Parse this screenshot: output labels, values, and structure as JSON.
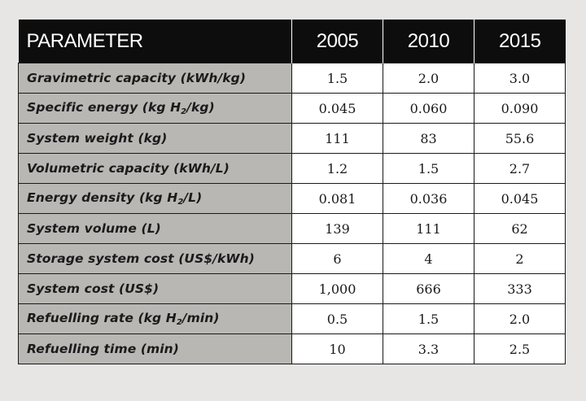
{
  "table": {
    "headers": [
      "PARAMETER",
      "2005",
      "2010",
      "2015"
    ],
    "rows": [
      {
        "parameter": "Gravimetric capacity (kWh/kg)",
        "values": [
          "1.5",
          "2.0",
          "3.0"
        ]
      },
      {
        "parameter_parts": [
          "Specific energy (kg H",
          "2",
          "/kg)"
        ],
        "values": [
          "0.045",
          "0.060",
          "0.090"
        ]
      },
      {
        "parameter": "System weight (kg)",
        "values": [
          "111",
          "83",
          "55.6"
        ]
      },
      {
        "parameter": "Volumetric capacity (kWh/L)",
        "values": [
          "1.2",
          "1.5",
          "2.7"
        ]
      },
      {
        "parameter_parts": [
          "Energy density (kg H",
          "2",
          "/L)"
        ],
        "values": [
          "0.081",
          "0.036",
          "0.045"
        ]
      },
      {
        "parameter": "System volume (L)",
        "values": [
          "139",
          "111",
          "62"
        ]
      },
      {
        "parameter": "Storage system cost (US$/kWh)",
        "values": [
          "6",
          "4",
          "2"
        ]
      },
      {
        "parameter": "System cost (US$)",
        "values": [
          "1,000",
          "666",
          "333"
        ]
      },
      {
        "parameter_parts": [
          "Refuelling rate (kg H",
          "2",
          "/min)"
        ],
        "values": [
          "0.5",
          "1.5",
          "2.0"
        ]
      },
      {
        "parameter": "Refuelling time (min)",
        "values": [
          "10",
          "3.3",
          "2.5"
        ]
      }
    ]
  }
}
